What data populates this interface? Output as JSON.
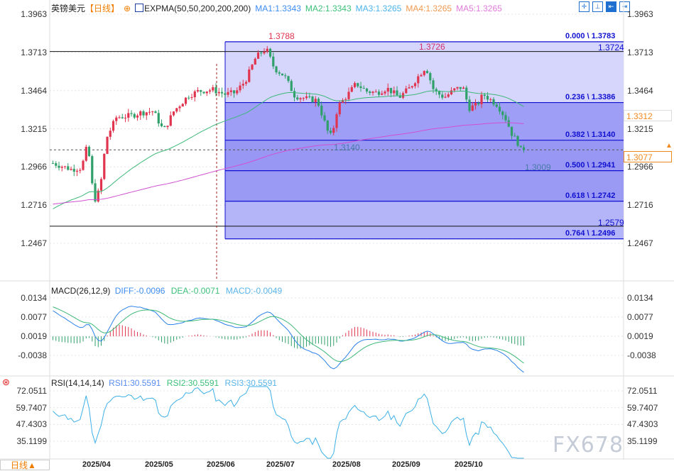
{
  "header": {
    "symbol": "英镑美元",
    "period": "【日线】",
    "expma_label": "EXPMA(50,50,200,200,200)",
    "ma1": "MA1:1.3343",
    "ma2": "MA2:1.3343",
    "ma3": "MA3:1.3265",
    "ma4": "MA4:1.3265",
    "ma5": "MA5:1.3265",
    "colors": {
      "ma1": "#3d8cf0",
      "ma2": "#3cc07a",
      "ma3": "#4ab4e8",
      "ma4": "#f09a50",
      "ma5": "#e07ad8"
    }
  },
  "toolbar_icons": [
    "crosshair-icon",
    "range-icon",
    "jump-start-icon",
    "jump-end-icon"
  ],
  "price_axis": {
    "ticks": [
      "1.3963",
      "1.3713",
      "1.3464",
      "1.3215",
      "1.2966",
      "1.2716",
      "1.2467"
    ],
    "range": [
      1.2467,
      1.3963
    ]
  },
  "price_markers": {
    "ref_price": "1.3312",
    "last_price": "1.3077"
  },
  "annotations": {
    "high": "1.3788",
    "sept_high": "1.3726",
    "july_low": "1.3140",
    "recent_low": "1.3009",
    "level_a": "1.3724",
    "level_b": "1.2579"
  },
  "fibonacci": [
    {
      "label": "0.000 \\ 1.3783",
      "price": 1.3783
    },
    {
      "label": "0.236 \\ 1.3386",
      "price": 1.3386
    },
    {
      "label": "0.382 \\ 1.3140",
      "price": 1.314
    },
    {
      "label": "0.500 \\ 1.2941",
      "price": 1.2941
    },
    {
      "label": "0.618 \\ 1.2742",
      "price": 1.2742
    },
    {
      "label": "0.764 \\ 1.2496",
      "price": 1.2496
    }
  ],
  "macd": {
    "title": "MACD(26,12,9)",
    "diff": "DIFF:-0.0096",
    "dea": "DEA:-0.0071",
    "macd": "MACD:-0.0049",
    "ticks": [
      "0.0134",
      "0.0077",
      "0.0019",
      "-0.0038"
    ]
  },
  "rsi": {
    "title": "RSI(14,14,14)",
    "rsi1": "RSI1:30.5591",
    "rsi2": "RSI2:30.5591",
    "rsi3": "RSI3:30.5591",
    "ticks": [
      "72.0511",
      "59.7407",
      "47.4303",
      "35.1199"
    ]
  },
  "x_axis": {
    "months": [
      "2025/04",
      "2025/05",
      "2025/06",
      "2025/07",
      "2025/08",
      "2025/09",
      "2025/10"
    ]
  },
  "bottom_tab": "日线▲",
  "watermark": "FX678",
  "chart_data": {
    "type": "candlestick",
    "title": "英镑美元【日线】",
    "ylim": [
      1.2467,
      1.3963
    ],
    "close_waypoints": [
      [
        "2025-03-10",
        1.299
      ],
      [
        "2025-03-19",
        1.295
      ],
      [
        "2025-03-24",
        1.296
      ],
      [
        "2025-03-27",
        1.312
      ],
      [
        "2025-03-30",
        1.274
      ],
      [
        "2025-04-02",
        1.282
      ],
      [
        "2025-04-05",
        1.315
      ],
      [
        "2025-04-10",
        1.329
      ],
      [
        "2025-04-17",
        1.33
      ],
      [
        "2025-04-22",
        1.332
      ],
      [
        "2025-04-28",
        1.333
      ],
      [
        "2025-05-03",
        1.32
      ],
      [
        "2025-05-08",
        1.333
      ],
      [
        "2025-05-15",
        1.343
      ],
      [
        "2025-05-20",
        1.346
      ],
      [
        "2025-05-27",
        1.347
      ],
      [
        "2025-06-02",
        1.344
      ],
      [
        "2025-06-07",
        1.345
      ],
      [
        "2025-06-12",
        1.353
      ],
      [
        "2025-06-17",
        1.368
      ],
      [
        "2025-06-22",
        1.374
      ],
      [
        "2025-06-26",
        1.361
      ],
      [
        "2025-07-01",
        1.356
      ],
      [
        "2025-07-06",
        1.343
      ],
      [
        "2025-07-12",
        1.341
      ],
      [
        "2025-07-17",
        1.34
      ],
      [
        "2025-07-22",
        1.32
      ],
      [
        "2025-07-24",
        1.316
      ],
      [
        "2025-07-27",
        1.336
      ],
      [
        "2025-08-01",
        1.344
      ],
      [
        "2025-08-05",
        1.351
      ],
      [
        "2025-08-10",
        1.346
      ],
      [
        "2025-08-15",
        1.345
      ],
      [
        "2025-08-20",
        1.348
      ],
      [
        "2025-08-26",
        1.342
      ],
      [
        "2025-08-31",
        1.348
      ],
      [
        "2025-09-05",
        1.357
      ],
      [
        "2025-09-08",
        1.362
      ],
      [
        "2025-09-12",
        1.346
      ],
      [
        "2025-09-17",
        1.342
      ],
      [
        "2025-09-22",
        1.347
      ],
      [
        "2025-09-26",
        1.349
      ],
      [
        "2025-09-29",
        1.335
      ],
      [
        "2025-10-03",
        1.337
      ],
      [
        "2025-10-06",
        1.344
      ],
      [
        "2025-10-10",
        1.34
      ],
      [
        "2025-10-13",
        1.337
      ],
      [
        "2025-10-17",
        1.328
      ],
      [
        "2025-10-20",
        1.318
      ],
      [
        "2025-10-24",
        1.31
      ],
      [
        "2025-10-25",
        1.302
      ],
      [
        "2025-10-27",
        1.3077
      ]
    ],
    "colors": {
      "up": "#e0344f",
      "down": "#30a06a",
      "ema50": "#3cb878",
      "ema200": "#d050d0",
      "fib_line": "#1010d0"
    }
  }
}
